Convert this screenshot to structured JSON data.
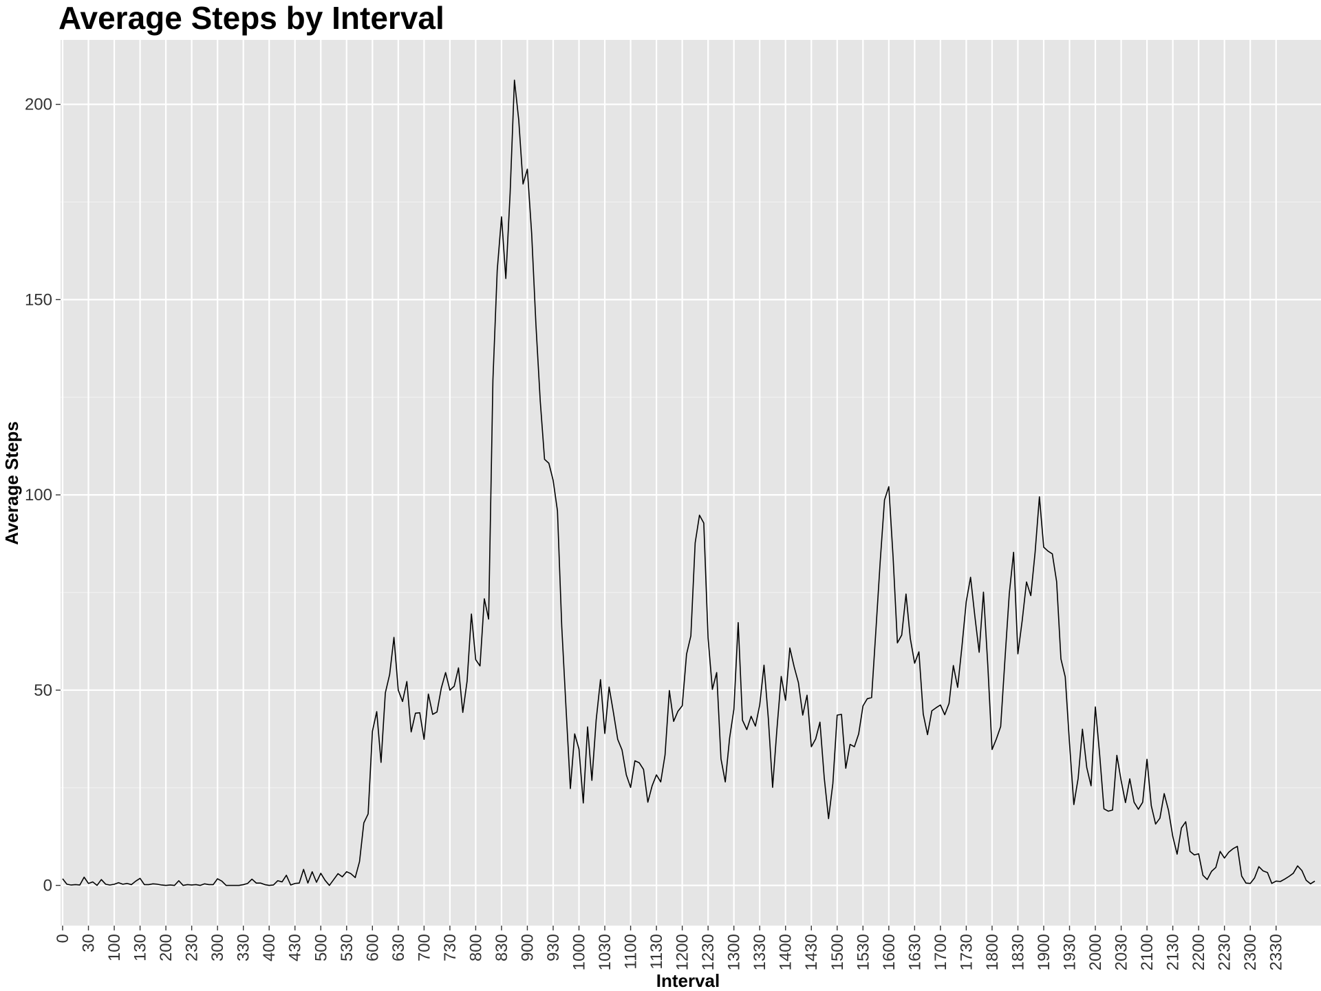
{
  "chart_data": {
    "type": "line",
    "title": "Average Steps by Interval",
    "xlabel": "Interval",
    "ylabel": "Average Steps",
    "ylim": [
      -10.3,
      216.5
    ],
    "yticks": [
      0,
      50,
      100,
      150,
      200
    ],
    "x_tick_labels": [
      "0",
      "30",
      "100",
      "130",
      "200",
      "230",
      "300",
      "330",
      "400",
      "430",
      "500",
      "530",
      "600",
      "630",
      "700",
      "730",
      "800",
      "830",
      "900",
      "930",
      "1000",
      "1030",
      "1100",
      "1130",
      "1200",
      "1230",
      "1300",
      "1330",
      "1400",
      "1430",
      "1500",
      "1530",
      "1600",
      "1630",
      "1700",
      "1730",
      "1800",
      "1830",
      "1900",
      "1930",
      "2000",
      "2030",
      "2100",
      "2130",
      "2200",
      "2230",
      "2300",
      "2330"
    ],
    "grid": true,
    "series": [
      {
        "values": [
          1.7,
          0.3,
          0.1,
          0.2,
          0.1,
          2.1,
          0.5,
          0.9,
          0.0,
          1.5,
          0.3,
          0.1,
          0.3,
          0.7,
          0.3,
          0.5,
          0.2,
          1.1,
          1.8,
          0.2,
          0.2,
          0.4,
          0.3,
          0.1,
          0.0,
          0.1,
          0.0,
          1.2,
          0.0,
          0.2,
          0.1,
          0.2,
          0.0,
          0.4,
          0.2,
          0.2,
          1.7,
          1.1,
          0.0,
          0.0,
          0.0,
          0.0,
          0.2,
          0.5,
          1.6,
          0.6,
          0.6,
          0.2,
          0.0,
          0.1,
          1.2,
          0.9,
          2.6,
          0.1,
          0.5,
          0.6,
          4.1,
          0.6,
          3.5,
          0.8,
          3.1,
          1.3,
          0.0,
          1.5,
          3.0,
          2.2,
          3.5,
          3.0,
          2.0,
          6.1,
          16.0,
          18.3,
          39.5,
          44.5,
          31.5,
          49.3,
          54.0,
          63.5,
          50.0,
          47.1,
          52.2,
          39.3,
          44.1,
          44.2,
          37.4,
          49.0,
          43.8,
          44.4,
          50.5,
          54.5,
          50.0,
          51.0,
          55.7,
          44.3,
          52.3,
          69.5,
          57.8,
          56.2,
          73.4,
          68.2,
          129.4,
          157.5,
          171.2,
          155.4,
          177.3,
          206.2,
          196.0,
          179.6,
          183.4,
          167.0,
          143.5,
          124.0,
          109.1,
          108.1,
          103.7,
          95.9,
          66.2,
          45.2,
          24.8,
          38.8,
          34.9,
          21.1,
          40.6,
          26.9,
          42.4,
          52.7,
          38.9,
          50.8,
          44.3,
          37.4,
          34.7,
          28.3,
          25.1,
          31.9,
          31.4,
          29.7,
          21.3,
          25.5,
          28.3,
          26.5,
          33.4,
          49.9,
          42.0,
          44.6,
          46.0,
          59.2,
          63.9,
          87.7,
          94.8,
          92.8,
          63.4,
          50.2,
          54.5,
          32.4,
          26.5,
          37.7,
          45.1,
          67.3,
          42.3,
          39.9,
          43.3,
          40.8,
          46.2,
          56.4,
          42.8,
          25.1,
          39.97,
          53.5,
          47.4,
          60.8,
          56.0,
          51.9,
          43.6,
          48.7,
          35.5,
          37.5,
          41.8,
          27.5,
          17.1,
          26.1,
          43.6,
          43.8,
          30.0,
          36.1,
          35.5,
          38.8,
          45.96,
          47.8,
          48.1,
          65.3,
          82.9,
          98.7,
          102.1,
          84.0,
          62.1,
          64.1,
          74.6,
          63.2,
          56.9,
          59.8,
          43.9,
          38.6,
          44.7,
          45.5,
          46.2,
          43.7,
          46.6,
          56.3,
          50.7,
          61.2,
          72.7,
          78.9,
          68.9,
          59.7,
          75.1,
          56.5,
          34.8,
          37.5,
          40.7,
          58.0,
          74.7,
          85.3,
          59.3,
          67.8,
          77.7,
          74.2,
          85.3,
          99.5,
          86.6,
          85.6,
          84.9,
          77.8,
          58.0,
          53.4,
          36.3,
          20.7,
          27.4,
          40.0,
          30.2,
          25.5,
          45.7,
          33.5,
          19.6,
          19.0,
          19.3,
          33.3,
          26.8,
          21.2,
          27.3,
          21.3,
          19.5,
          21.3,
          32.3,
          20.4,
          15.7,
          17.2,
          23.5,
          19.2,
          12.5,
          8.0,
          14.7,
          16.3,
          8.7,
          7.8,
          8.1,
          2.6,
          1.5,
          3.6,
          4.6,
          8.7,
          7.0,
          8.5,
          9.4,
          10.0,
          2.4,
          0.6,
          0.5,
          1.9,
          4.8,
          3.7,
          3.3,
          0.5,
          1.1,
          1.0,
          1.6,
          2.3,
          3.1,
          5.0,
          3.8,
          1.3,
          0.4,
          1.1
        ]
      }
    ]
  }
}
